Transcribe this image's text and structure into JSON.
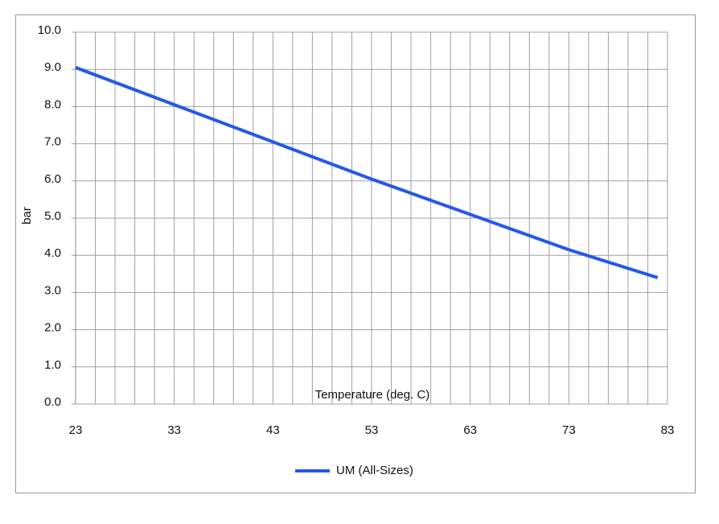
{
  "chart_data": {
    "type": "line",
    "x_label": "Temperature (deg. C)",
    "y_label": "bar",
    "x": [
      23,
      33,
      43,
      53,
      63,
      73,
      82
    ],
    "series": [
      {
        "name": "UM (All-Sizes)",
        "color": "#2458ea",
        "values": [
          9.05,
          8.05,
          7.05,
          6.05,
          5.1,
          4.15,
          3.4
        ]
      }
    ],
    "xlim": [
      23,
      83
    ],
    "xticks": [
      23,
      33,
      43,
      53,
      63,
      73,
      83
    ],
    "xgrid": [
      23,
      25,
      27,
      29,
      31,
      33,
      35,
      37,
      39,
      41,
      43,
      45,
      47,
      49,
      51,
      53,
      55,
      57,
      59,
      61,
      63,
      65,
      67,
      69,
      71,
      73,
      75,
      77,
      79,
      81,
      83
    ],
    "ylim": [
      0,
      10
    ],
    "yticks": [
      {
        "value": 0,
        "label": "0.0"
      },
      {
        "value": 1,
        "label": "1.0"
      },
      {
        "value": 2,
        "label": "2.0"
      },
      {
        "value": 3,
        "label": "3.0"
      },
      {
        "value": 4,
        "label": "4.0"
      },
      {
        "value": 5,
        "label": "5.0"
      },
      {
        "value": 6,
        "label": "6.0"
      },
      {
        "value": 7,
        "label": "7.0"
      },
      {
        "value": 8,
        "label": "8.0"
      },
      {
        "value": 9,
        "label": "9.0"
      },
      {
        "value": 10,
        "label": "10.0"
      }
    ],
    "grid": true,
    "legend": "bottom"
  }
}
